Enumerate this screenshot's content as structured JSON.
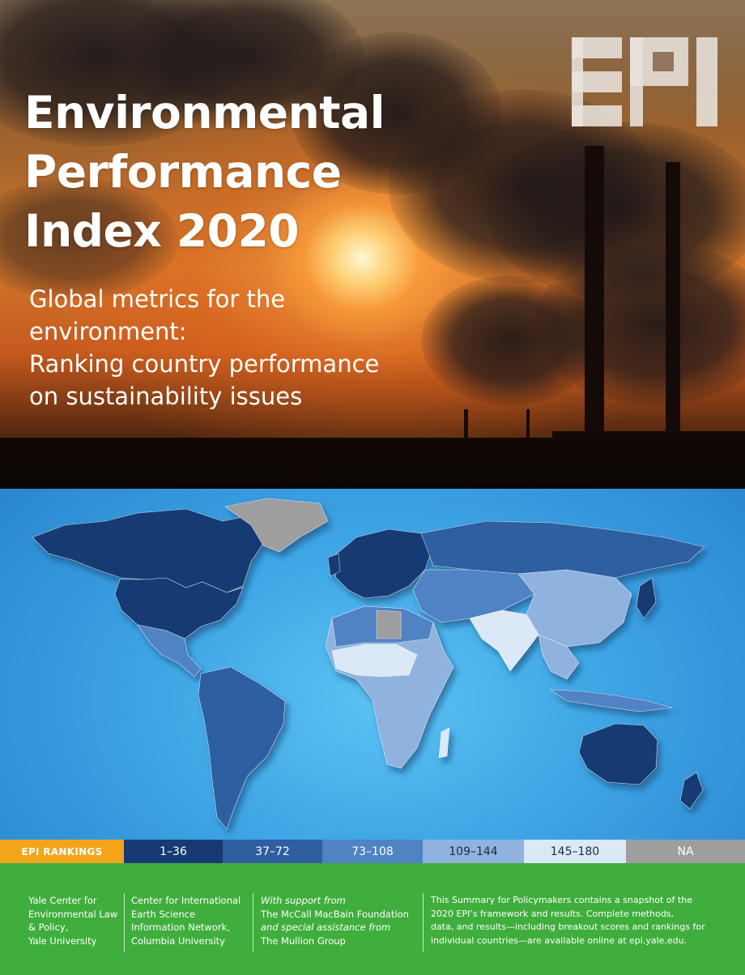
{
  "hero": {
    "title_lines": [
      "Environmental",
      "Performance",
      "Index 2020"
    ],
    "subtitle_lines": [
      "Global metrics for the",
      "environment:",
      "Ranking country performance",
      "on sustainability issues"
    ],
    "logo_text": "EPI"
  },
  "legend": {
    "title": "EPI RANKINGS",
    "items": [
      {
        "label": "1–36",
        "color": "#173a73"
      },
      {
        "label": "37–72",
        "color": "#2f5ea1"
      },
      {
        "label": "73–108",
        "color": "#4f83c4"
      },
      {
        "label": "109–144",
        "color": "#8fb3de"
      },
      {
        "label": "145–180",
        "color": "#dbe8f6"
      },
      {
        "label": "NA",
        "color": "#9e9e9e"
      }
    ]
  },
  "footer": {
    "col1": [
      "Yale Center for",
      "Environmental Law",
      "& Policy,",
      "Yale University"
    ],
    "col2": [
      "Center for International",
      "Earth Science",
      "Information Network,",
      "Columbia University"
    ],
    "col3": {
      "line1": "With support from",
      "line2": "The McCall MacBain Foundation",
      "line3": "and special assistance from",
      "line4": "The Mullion Group"
    },
    "col4": [
      "This Summary for Policymakers contains a snapshot of the",
      "2020 EPI’s framework and results. Complete methods,",
      "data, and results—including breakout scores and rankings for",
      "individual countries—are available online at epi.yale.edu."
    ]
  },
  "colors": {
    "legend_title_bg": "#f3a419",
    "footer_bg": "#3fae3c",
    "ocean": "#3fa6e6",
    "na_gray": "#9e9e9e"
  }
}
